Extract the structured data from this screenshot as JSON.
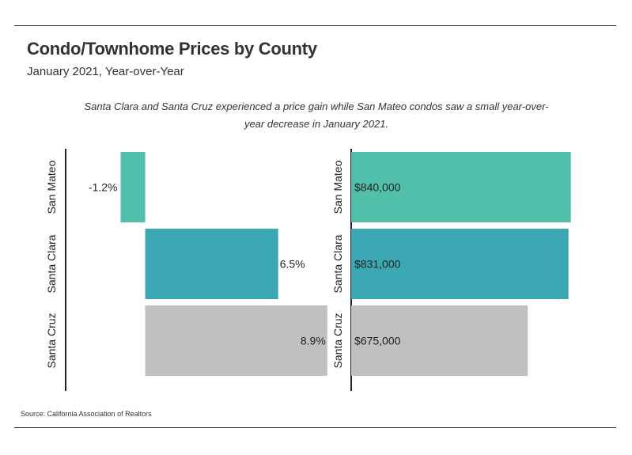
{
  "title": "Condo/Townhome Prices by County",
  "subtitle": "January 2021, Year-over-Year",
  "description": "Santa Clara and Santa Cruz experienced a price gain while San Mateo condos saw a small year-over-year decrease in January 2021.",
  "source": "Source:  California Association of Realtors",
  "colors": {
    "San Mateo": "#52bfab",
    "Santa Clara": "#3ba8b3",
    "Santa Cruz": "#c0c0c0"
  },
  "chart_data": [
    {
      "type": "bar",
      "orientation": "horizontal",
      "categories": [
        "San Mateo",
        "Santa Clara",
        "Santa Cruz"
      ],
      "values": [
        -1.2,
        6.5,
        8.9
      ],
      "value_labels": [
        "-1.2%",
        "6.5%",
        "8.9%"
      ],
      "xlim": [
        -3.5,
        12
      ],
      "title": "",
      "xlabel": "",
      "ylabel": ""
    },
    {
      "type": "bar",
      "orientation": "horizontal",
      "categories": [
        "San Mateo",
        "Santa Clara",
        "Santa Cruz"
      ],
      "values": [
        840000,
        831000,
        675000
      ],
      "value_labels": [
        "$840,000",
        "$831,000",
        "$675,000"
      ],
      "xlim": [
        0,
        850000
      ],
      "title": "",
      "xlabel": "",
      "ylabel": ""
    }
  ]
}
